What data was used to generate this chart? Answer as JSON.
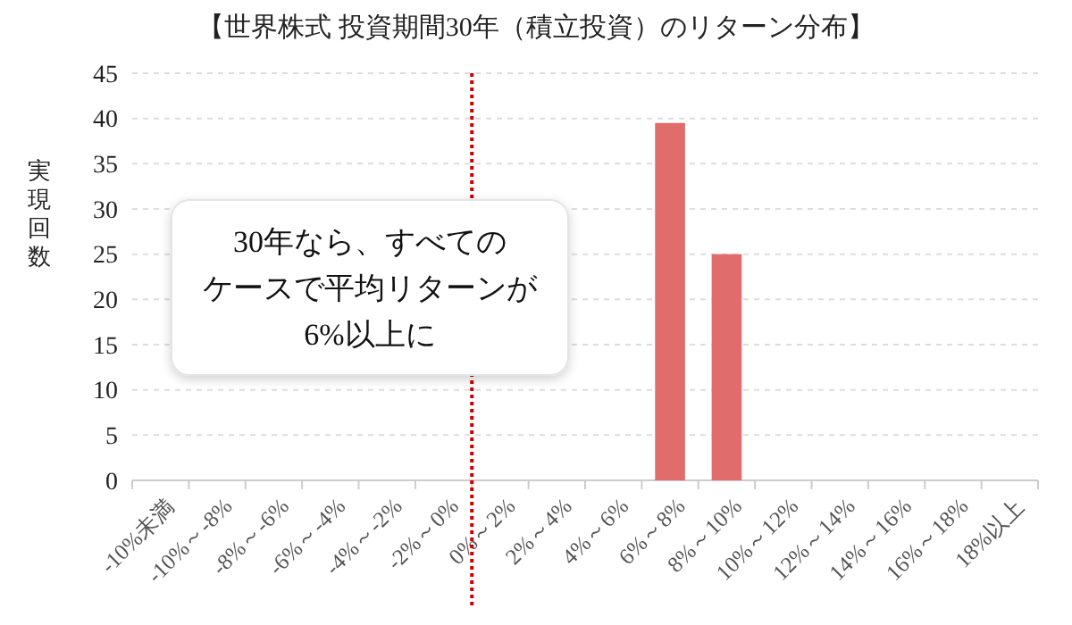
{
  "chart_data": {
    "type": "bar",
    "title": "【世界株式 投資期間30年（積立投資）のリターン分布】",
    "ylabel": "実現回数",
    "categories": [
      "-10%未満",
      "-10%～-8%",
      "-8%～-6%",
      "-6%～-4%",
      "-4%～-2%",
      "-2%～0%",
      "0%～2%",
      "2%～4%",
      "4%～6%",
      "6%～8%",
      "8%～10%",
      "10%～12%",
      "12%～14%",
      "14%～16%",
      "16%～18%",
      "18%以上"
    ],
    "values": [
      0,
      0,
      0,
      0,
      0,
      0,
      0,
      0,
      0,
      39.5,
      25,
      0,
      0,
      0,
      0,
      0
    ],
    "color": "#e06c6c",
    "ylim": [
      0,
      45
    ],
    "yticks": [
      0,
      5,
      10,
      15,
      20,
      25,
      30,
      35,
      40,
      45
    ],
    "grid": "y",
    "ref_lines": [
      {
        "axis": "x",
        "value": "0%～2%",
        "color": "#cc0000",
        "line_style": "dotted"
      }
    ],
    "annotations": [
      "30年なら、すべての",
      "ケースで平均リターンが",
      "6%以上に"
    ]
  }
}
